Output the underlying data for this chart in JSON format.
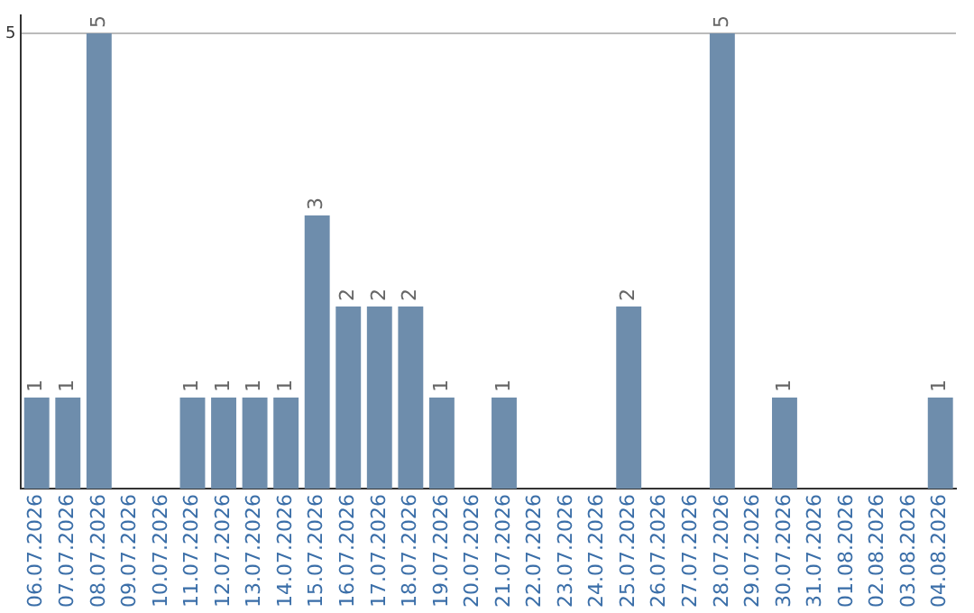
{
  "chart_data": {
    "type": "bar",
    "categories": [
      "06.07.2026",
      "07.07.2026",
      "08.07.2026",
      "09.07.2026",
      "10.07.2026",
      "11.07.2026",
      "12.07.2026",
      "13.07.2026",
      "14.07.2026",
      "15.07.2026",
      "16.07.2026",
      "17.07.2026",
      "18.07.2026",
      "19.07.2026",
      "20.07.2026",
      "21.07.2026",
      "22.07.2026",
      "23.07.2026",
      "24.07.2026",
      "25.07.2026",
      "26.07.2026",
      "27.07.2026",
      "28.07.2026",
      "29.07.2026",
      "30.07.2026",
      "31.07.2026",
      "01.08.2026",
      "02.08.2026",
      "03.08.2026",
      "04.08.2026"
    ],
    "values": [
      1,
      1,
      5,
      0,
      0,
      1,
      1,
      1,
      1,
      3,
      2,
      2,
      2,
      1,
      0,
      1,
      0,
      0,
      0,
      2,
      0,
      0,
      5,
      0,
      1,
      0,
      0,
      0,
      0,
      1
    ],
    "value_labels": [
      "1",
      "1",
      "5",
      null,
      null,
      "1",
      "1",
      "1",
      "1",
      "3",
      "2",
      "2",
      "2",
      "1",
      null,
      "1",
      null,
      null,
      null,
      "2",
      null,
      null,
      "5",
      null,
      "1",
      null,
      null,
      null,
      null,
      "1"
    ],
    "color": "#6e8dac",
    "ylim": [
      0,
      5.2
    ],
    "yticks": [
      5
    ],
    "grid": "y",
    "legend": false
  }
}
